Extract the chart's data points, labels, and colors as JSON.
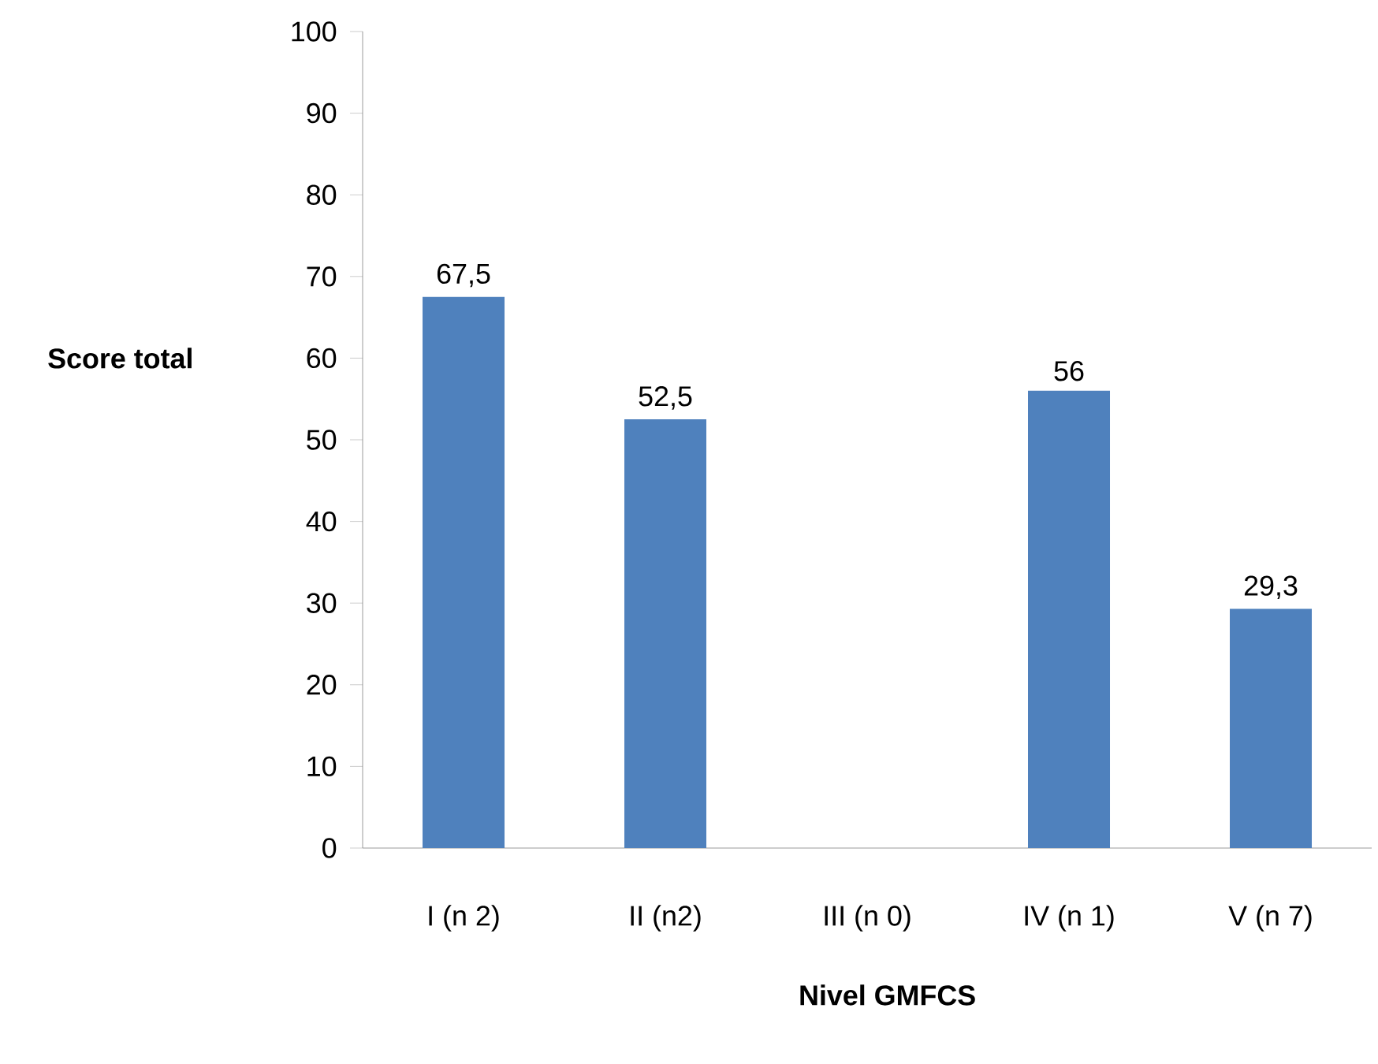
{
  "chart_data": {
    "type": "bar",
    "xlabel": "Nivel GMFCS",
    "ylabel": "Score total",
    "categories": [
      "I (n 2)",
      "II (n2)",
      "III (n 0)",
      "IV (n 1)",
      "V (n 7)"
    ],
    "values": [
      67.5,
      52.5,
      null,
      56,
      29.3
    ],
    "value_labels": [
      "67,5",
      "52,5",
      null,
      "56",
      "29,3"
    ],
    "color": "#4f81bd",
    "ylim": [
      0,
      100
    ],
    "yticks": [
      0,
      10,
      20,
      30,
      40,
      50,
      60,
      70,
      80,
      90,
      100
    ]
  }
}
